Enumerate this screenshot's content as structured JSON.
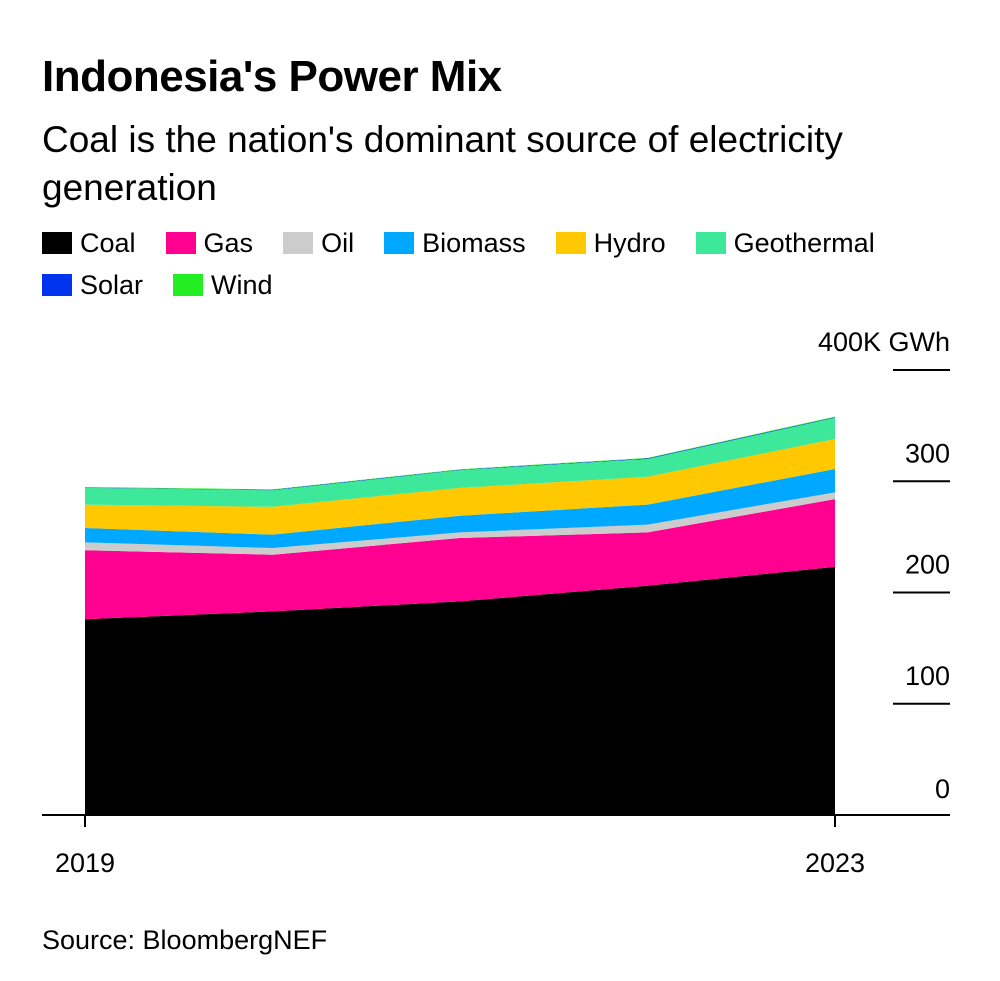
{
  "title": "Indonesia's Power Mix",
  "subtitle": "Coal is the nation's dominant source of electricity generation",
  "source": "Source: BloombergNEF",
  "chart_data": {
    "type": "area",
    "stacked": true,
    "x": [
      2019,
      2020,
      2021,
      2022,
      2023
    ],
    "xticks": [
      "2019",
      "2023"
    ],
    "xtick_values": [
      2019,
      2023
    ],
    "ylim": [
      0,
      400
    ],
    "yticks": [
      0,
      100,
      200,
      300,
      400
    ],
    "ytick_labels": [
      "0",
      "100",
      "200",
      "300",
      "400K GWh"
    ],
    "unit": "K GWh",
    "legend_position": "top",
    "series": [
      {
        "name": "Coal",
        "color": "#000000",
        "values": [
          176,
          183,
          192,
          206,
          223
        ]
      },
      {
        "name": "Gas",
        "color": "#ff0090",
        "values": [
          62,
          51,
          57,
          48,
          61
        ]
      },
      {
        "name": "Oil",
        "color": "#cccccc",
        "values": [
          7,
          6,
          5,
          7,
          6
        ]
      },
      {
        "name": "Biomass",
        "color": "#00a9ff",
        "values": [
          13,
          12,
          15,
          18,
          21
        ]
      },
      {
        "name": "Hydro",
        "color": "#ffc800",
        "values": [
          21,
          25,
          25,
          25,
          27
        ]
      },
      {
        "name": "Geothermal",
        "color": "#3de89a",
        "values": [
          15,
          15,
          16,
          16,
          19
        ]
      },
      {
        "name": "Solar",
        "color": "#0033ee",
        "values": [
          0.3,
          0.3,
          0.4,
          0.5,
          0.6
        ]
      },
      {
        "name": "Wind",
        "color": "#22ee22",
        "values": [
          0.5,
          0.4,
          0.4,
          0.5,
          0.5
        ]
      }
    ]
  }
}
